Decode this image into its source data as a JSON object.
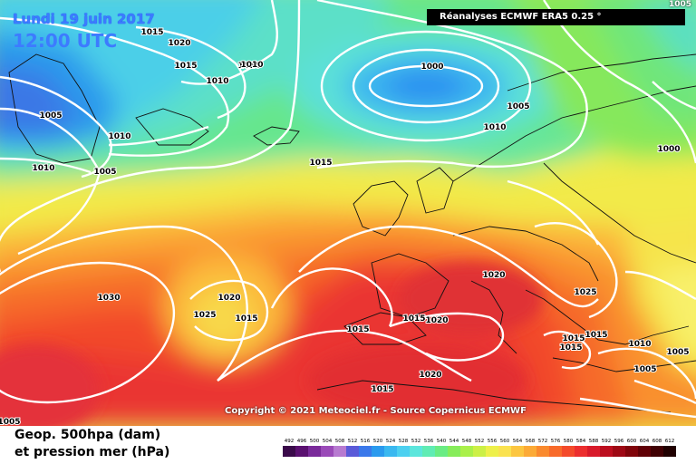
{
  "header": {
    "date": "Lundi 19 juin 2017",
    "time": "12:00 UTC",
    "source_banner": "Réanalyses ECMWF ERA5 0.25 °"
  },
  "copyright": "Copyright © 2021 Meteociel.fr - Source Copernicus ECMWF",
  "legend": {
    "line1": "Geop. 500hpa (dam)",
    "line2": "et pression mer (hPa)",
    "scale_values": [
      "492",
      "496",
      "500",
      "504",
      "508",
      "512",
      "516",
      "520",
      "524",
      "528",
      "532",
      "536",
      "540",
      "544",
      "548",
      "552",
      "556",
      "560",
      "564",
      "568",
      "572",
      "576",
      "580",
      "584",
      "588",
      "592",
      "596",
      "600",
      "604",
      "608",
      "612"
    ],
    "scale_colors": [
      "#3a0a4a",
      "#5a1070",
      "#7a2a9a",
      "#9a4ab8",
      "#b77ad0",
      "#5a5ad8",
      "#3a78ea",
      "#2a9aee",
      "#3ab8f0",
      "#4cd0f0",
      "#5ce6dc",
      "#60ecb4",
      "#6aec84",
      "#86ec5a",
      "#aaf04a",
      "#ccf046",
      "#eef04a",
      "#fae250",
      "#fcc640",
      "#fcaa36",
      "#fa8a2e",
      "#f86a2a",
      "#f44a2a",
      "#ec2e2e",
      "#d81a2a",
      "#bc0e1e",
      "#9e0814",
      "#80040a",
      "#600006",
      "#400003",
      "#200000"
    ]
  },
  "pressure_labels": [
    "1015",
    "1020",
    "1015",
    "1010",
    "1010",
    "1005",
    "1010",
    "1005",
    "1010",
    "1000",
    "1005",
    "1010",
    "1015",
    "1000",
    "1030",
    "1020",
    "1025",
    "1015",
    "1015",
    "1015",
    "1020",
    "1020",
    "1015",
    "1015",
    "1015",
    "1010",
    "1005",
    "1005",
    "1015",
    "1010",
    "1020",
    "1025",
    "1005"
  ],
  "colors": {
    "accent_title": "#3d7bff",
    "banner_bg": "#000000"
  }
}
